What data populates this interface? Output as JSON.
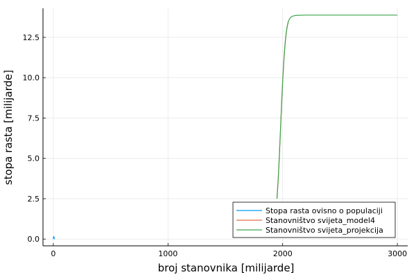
{
  "chart_data": {
    "type": "line",
    "title": "",
    "xlabel": "broj stanovnika [milijarde]",
    "ylabel": "stopa rasta [milijarde]",
    "xlim": [
      -90,
      3090
    ],
    "ylim": [
      -0.42,
      14.3
    ],
    "xticks": [
      0,
      1000,
      2000,
      3000
    ],
    "xtick_labels": [
      "0",
      "1000",
      "2000",
      "3000"
    ],
    "yticks": [
      0.0,
      2.5,
      5.0,
      7.5,
      10.0,
      12.5
    ],
    "ytick_labels": [
      "0.0",
      "2.5",
      "5.0",
      "7.5",
      "10.0",
      "12.5"
    ],
    "grid": true,
    "legend_position": "bottom-right",
    "series": [
      {
        "name": "Stopa rasta ovisno o populaciji",
        "color": "#009af9",
        "x": [
          0,
          1,
          2,
          3,
          4,
          5,
          6,
          7,
          8,
          9,
          10,
          11,
          12
        ],
        "y": [
          0.0,
          0.07,
          0.12,
          0.15,
          0.16,
          0.15,
          0.13,
          0.1,
          0.07,
          0.04,
          0.02,
          0.01,
          0.0
        ]
      },
      {
        "name": "Stanovništvo svijeta_model4",
        "color": "#e26f46",
        "x": [
          1950,
          1960,
          1970,
          1980,
          1990,
          2000,
          2010,
          2020,
          2030,
          2040,
          2050
        ],
        "y": [
          2.5,
          3.5,
          5.0,
          6.6,
          8.3,
          9.8,
          11.0,
          12.0,
          12.7,
          13.2,
          13.5
        ]
      },
      {
        "name": "Stanovništvo svijeta_projekcija",
        "color": "#3da44d",
        "x": [
          1950,
          1960,
          1970,
          1980,
          1990,
          2000,
          2010,
          2020,
          2030,
          2040,
          2050,
          2060,
          2070,
          2080,
          2090,
          2100,
          2120,
          2150,
          2200,
          2300,
          2500,
          2700,
          3000
        ],
        "y": [
          2.5,
          3.6,
          5.0,
          6.6,
          8.3,
          9.8,
          11.05,
          12.05,
          12.75,
          13.2,
          13.5,
          13.65,
          13.74,
          13.79,
          13.82,
          13.84,
          13.86,
          13.87,
          13.88,
          13.88,
          13.88,
          13.88,
          13.88
        ]
      }
    ]
  }
}
